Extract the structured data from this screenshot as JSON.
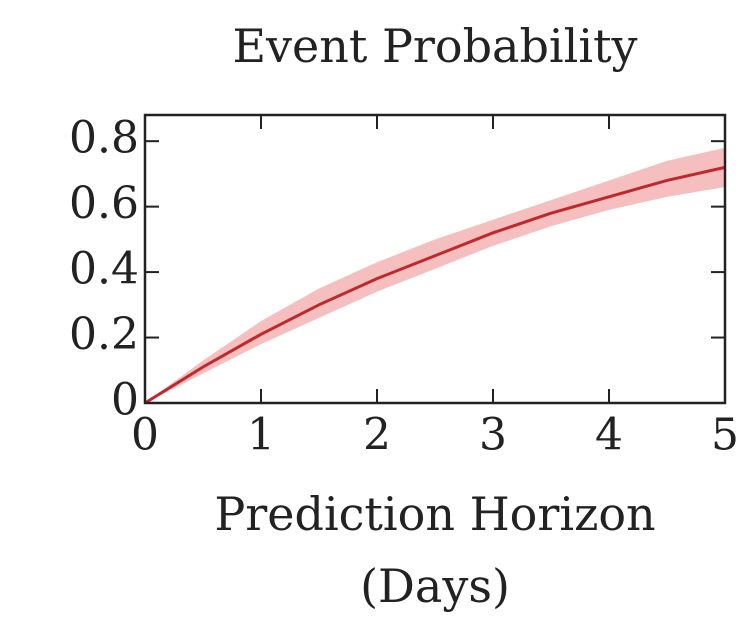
{
  "chart_data": {
    "type": "line",
    "title": "Event Probability",
    "xlabel": [
      "Prediction Horizon",
      "(Days)"
    ],
    "x": [
      0,
      0.5,
      1,
      1.5,
      2,
      2.5,
      3,
      3.5,
      4,
      4.5,
      5
    ],
    "series": [
      {
        "color": "#c0282d",
        "values": [
          0,
          0.11,
          0.21,
          0.3,
          0.38,
          0.45,
          0.52,
          0.58,
          0.63,
          0.68,
          0.72
        ],
        "band_lower": [
          0,
          0.09,
          0.18,
          0.26,
          0.34,
          0.41,
          0.48,
          0.54,
          0.59,
          0.63,
          0.66
        ],
        "band_upper": [
          0,
          0.13,
          0.25,
          0.35,
          0.43,
          0.5,
          0.56,
          0.62,
          0.68,
          0.74,
          0.78
        ],
        "band_color": "#f2a9a9"
      }
    ],
    "xlim": [
      0,
      5
    ],
    "xticks": [
      0,
      1,
      2,
      3,
      4,
      5
    ],
    "ylim": [
      0,
      0.88
    ],
    "yticks": [
      0,
      0.2,
      0.4,
      0.6,
      0.8
    ]
  }
}
